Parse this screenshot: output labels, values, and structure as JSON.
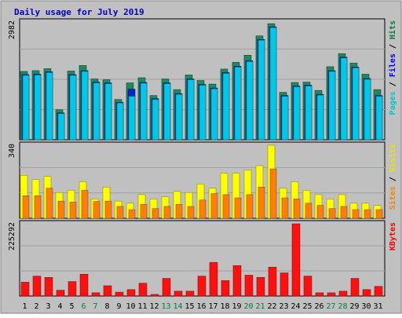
{
  "chart_data": [
    {
      "type": "bar",
      "title": "Daily usage for July 2019",
      "categories": [
        "1",
        "2",
        "3",
        "4",
        "5",
        "6",
        "7",
        "8",
        "9",
        "10",
        "11",
        "12",
        "13",
        "14",
        "15",
        "16",
        "17",
        "18",
        "19",
        "20",
        "21",
        "22",
        "23",
        "24",
        "25",
        "26",
        "27",
        "28",
        "29",
        "30",
        "31"
      ],
      "weekend_days": [
        "6",
        "7",
        "13",
        "14",
        "20",
        "21",
        "27",
        "28"
      ],
      "ylim": [
        0,
        2982
      ],
      "ytick_label": "2982",
      "right_labels": [
        {
          "text": "Pages",
          "color": "#00c8c8"
        },
        {
          "text": " / ",
          "color": "#000000"
        },
        {
          "text": "Files",
          "color": "#0000ff"
        },
        {
          "text": " / ",
          "color": "#000000"
        },
        {
          "text": "Hits",
          "color": "#008040"
        }
      ],
      "series": [
        {
          "name": "Hits",
          "color": "#1e8c5a",
          "values": [
            1730,
            1750,
            1800,
            760,
            1740,
            1880,
            1540,
            1520,
            1020,
            1440,
            1570,
            1120,
            1540,
            1270,
            1640,
            1500,
            1410,
            1790,
            1960,
            2140,
            2630,
            2940,
            1200,
            1450,
            1460,
            1250,
            1850,
            2180,
            1940,
            1660,
            1270
          ]
        },
        {
          "name": "Files",
          "color": "#0028c8",
          "values": [
            1690,
            1700,
            1760,
            720,
            1690,
            1790,
            1500,
            1480,
            990,
            1320,
            1490,
            1080,
            1480,
            1210,
            1580,
            1440,
            1350,
            1740,
            1900,
            2040,
            2580,
            2900,
            1160,
            1400,
            1420,
            1190,
            1790,
            2130,
            1880,
            1590,
            1160
          ]
        },
        {
          "name": "Pages",
          "color": "#00c8e6",
          "values": [
            1690,
            1700,
            1760,
            720,
            1690,
            1790,
            1500,
            1480,
            990,
            1160,
            1490,
            1080,
            1480,
            1210,
            1580,
            1440,
            1350,
            1740,
            1900,
            2040,
            2580,
            2900,
            1160,
            1400,
            1420,
            1190,
            1790,
            2130,
            1880,
            1590,
            1160
          ]
        }
      ]
    },
    {
      "type": "bar",
      "ylim": [
        0,
        340
      ],
      "ytick_label": "340",
      "right_labels": [
        {
          "text": "Sites",
          "color": "#ff8000"
        },
        {
          "text": " / ",
          "color": "#000000"
        },
        {
          "text": "Visits",
          "color": "#e6e600"
        }
      ],
      "series": [
        {
          "name": "Visits",
          "color": "#ffff00",
          "values": [
            200,
            180,
            195,
            120,
            130,
            170,
            90,
            145,
            80,
            70,
            110,
            90,
            100,
            125,
            120,
            160,
            140,
            210,
            210,
            225,
            245,
            340,
            140,
            170,
            130,
            110,
            90,
            110,
            70,
            70,
            60
          ]
        },
        {
          "name": "Sites",
          "color": "#ff8000",
          "values": [
            105,
            105,
            140,
            80,
            75,
            130,
            78,
            80,
            55,
            40,
            65,
            45,
            55,
            65,
            55,
            85,
            115,
            110,
            95,
            110,
            145,
            230,
            95,
            90,
            70,
            60,
            45,
            55,
            40,
            40,
            40
          ]
        }
      ]
    },
    {
      "type": "bar",
      "ylim": [
        0,
        225292
      ],
      "ytick_label": "225292",
      "right_labels": [
        {
          "text": "KBytes",
          "color": "#ff0000"
        }
      ],
      "series": [
        {
          "name": "KBytes",
          "color": "#ff1010",
          "values": [
            43000,
            62000,
            58000,
            18000,
            45000,
            68000,
            10000,
            32000,
            12000,
            20000,
            40000,
            5000,
            55000,
            15000,
            15000,
            62000,
            105000,
            48000,
            95000,
            65000,
            58000,
            90000,
            72000,
            225292,
            62000,
            10000,
            10000,
            15000,
            55000,
            20000,
            30000
          ]
        }
      ]
    }
  ]
}
